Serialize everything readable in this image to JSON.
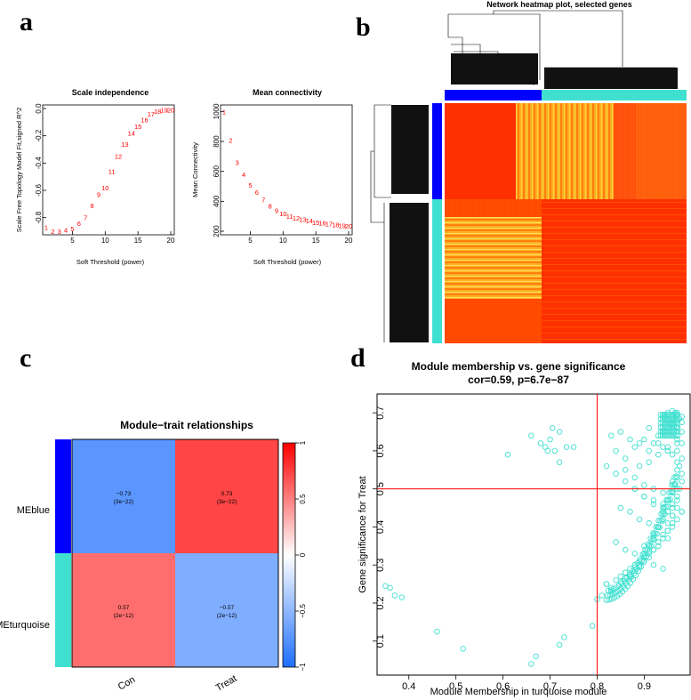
{
  "panels": {
    "a": "a",
    "b": "b",
    "c": "c",
    "d": "d"
  },
  "colors": {
    "blue": "#0000ff",
    "turquoise": "#40e0d0",
    "red": "#ff0000"
  },
  "chart_data": [
    {
      "id": "scale-independence",
      "type": "scatter",
      "title": "Scale independence",
      "xlabel": "Soft Threshold (power)",
      "ylabel": "Scale Free Topology Model Fit,signed R^2",
      "xlim": [
        1,
        20
      ],
      "ylim": [
        -0.9,
        0.0
      ],
      "xticks": [
        5,
        10,
        15,
        20
      ],
      "yticks": [
        0.0,
        -0.2,
        -0.4,
        -0.6,
        -0.8
      ],
      "ytick_labels": [
        "0.0",
        "-0.2",
        "-0.4",
        "-0.6",
        "-0.8"
      ],
      "x": [
        1,
        2,
        3,
        4,
        5,
        6,
        7,
        8,
        9,
        10,
        11,
        12,
        13,
        14,
        15,
        16,
        17,
        18,
        19,
        20
      ],
      "y": [
        -0.87,
        -0.9,
        -0.9,
        -0.89,
        -0.88,
        -0.84,
        -0.8,
        -0.71,
        -0.63,
        -0.58,
        -0.46,
        -0.35,
        -0.26,
        -0.18,
        -0.13,
        -0.08,
        -0.04,
        -0.02,
        -0.01,
        -0.01
      ],
      "labels": [
        "1",
        "2",
        "3",
        "4",
        "5",
        "6",
        "7",
        "8",
        "9",
        "10",
        "11",
        "12",
        "13",
        "14",
        "15",
        "16",
        "17",
        "18",
        "19",
        "20"
      ]
    },
    {
      "id": "mean-connectivity",
      "type": "scatter",
      "title": "Mean connectivity",
      "xlabel": "Soft Threshold (power)",
      "ylabel": "Mean Connectivity",
      "xlim": [
        1,
        20
      ],
      "ylim": [
        200,
        1020
      ],
      "xticks": [
        5,
        10,
        15,
        20
      ],
      "yticks": [
        200,
        400,
        600,
        800,
        1000
      ],
      "ytick_labels": [
        "200",
        "400",
        "600",
        "800",
        "1000"
      ],
      "x": [
        1,
        2,
        3,
        4,
        5,
        6,
        7,
        8,
        9,
        10,
        11,
        12,
        13,
        14,
        15,
        16,
        17,
        18,
        19,
        20
      ],
      "y": [
        1000,
        810,
        660,
        580,
        510,
        460,
        410,
        370,
        340,
        320,
        300,
        290,
        280,
        270,
        260,
        255,
        250,
        245,
        240,
        235
      ],
      "labels": [
        "1",
        "2",
        "3",
        "4",
        "5",
        "6",
        "7",
        "8",
        "9",
        "10",
        "11",
        "12",
        "13",
        "14",
        "15",
        "16",
        "17",
        "18",
        "19",
        "20"
      ]
    },
    {
      "id": "network-heatmap",
      "type": "heatmap",
      "title": "Network heatmap plot, selected genes",
      "modules": [
        {
          "name": "blue",
          "fraction": 0.4
        },
        {
          "name": "turquoise",
          "fraction": 0.6
        }
      ]
    },
    {
      "id": "module-trait",
      "type": "heatmap",
      "title": "Module−trait relationships",
      "columns": [
        "Con",
        "Treat"
      ],
      "rows": [
        "MEblue",
        "MEturquoise"
      ],
      "values": [
        [
          -0.73,
          0.73
        ],
        [
          0.57,
          -0.57
        ]
      ],
      "cell_text": [
        [
          "−0.73",
          "0.73"
        ],
        [
          "0.57",
          "−0.57"
        ]
      ],
      "cell_pvalues": [
        [
          "(3e−22)",
          "(3e−22)"
        ],
        [
          "(2e−12)",
          "(2e−12)"
        ]
      ],
      "legend_ticks": [
        "1",
        "0.5",
        "0",
        "−0.5",
        "−1"
      ],
      "legend_range": [
        -1,
        1
      ]
    },
    {
      "id": "membership-significance",
      "type": "scatter",
      "title": "Module membership vs. gene significance",
      "subtitle": "cor=0.59, p=6.7e−87",
      "xlabel": "Module Membership in turquoise module",
      "ylabel": "Gene significance for  Treat",
      "xlim": [
        0.34,
        0.99
      ],
      "ylim": [
        0.02,
        0.74
      ],
      "xticks": [
        0.4,
        0.5,
        0.6,
        0.7,
        0.8,
        0.9
      ],
      "xtick_labels": [
        "0.4",
        "0.5",
        "0.6",
        "0.7",
        "0.8",
        "0.9"
      ],
      "yticks": [
        0.1,
        0.2,
        0.3,
        0.4,
        0.5,
        0.6,
        0.7
      ],
      "ytick_labels": [
        "0.1",
        "0.2",
        "0.3",
        "0.4",
        "0.5",
        "0.6",
        "0.7"
      ],
      "hline": 0.5,
      "vline": 0.8,
      "x": [
        0.35,
        0.36,
        0.37,
        0.385,
        0.46,
        0.515,
        0.61,
        0.66,
        0.68,
        0.695,
        0.7,
        0.705,
        0.72,
        0.735,
        0.69,
        0.71,
        0.72,
        0.75,
        0.66,
        0.67,
        0.72,
        0.73,
        0.79,
        0.81,
        0.83,
        0.8,
        0.82,
        0.84,
        0.85,
        0.86,
        0.87,
        0.88,
        0.89,
        0.9,
        0.91,
        0.92,
        0.93,
        0.94,
        0.95,
        0.96,
        0.97,
        0.85,
        0.86,
        0.87,
        0.88,
        0.89,
        0.9,
        0.91,
        0.92,
        0.93,
        0.94,
        0.95,
        0.96,
        0.97,
        0.975,
        0.98,
        0.86,
        0.88,
        0.9,
        0.92,
        0.94,
        0.95,
        0.96,
        0.97,
        0.9,
        0.92,
        0.93,
        0.94,
        0.95,
        0.96,
        0.965,
        0.97,
        0.97,
        0.975,
        0.98,
        0.93,
        0.94,
        0.95,
        0.96,
        0.97,
        0.96,
        0.965,
        0.97,
        0.975,
        0.98,
        0.83,
        0.85,
        0.87,
        0.89,
        0.91,
        0.84,
        0.86,
        0.88,
        0.9,
        0.92,
        0.94,
        0.95,
        0.96,
        0.97,
        0.98,
        0.82,
        0.84,
        0.86,
        0.88,
        0.9,
        0.92,
        0.94,
        0.96,
        0.85,
        0.87,
        0.89,
        0.91,
        0.93,
        0.95,
        0.97,
        0.88,
        0.9,
        0.92,
        0.94,
        0.96,
        0.98,
        0.86,
        0.88,
        0.9,
        0.92,
        0.94,
        0.96,
        0.97,
        0.98,
        0.91,
        0.93,
        0.95,
        0.97,
        0.89,
        0.91,
        0.93,
        0.95,
        0.97,
        0.95,
        0.96,
        0.97,
        0.98,
        0.94,
        0.95,
        0.96,
        0.97,
        0.98,
        0.84,
        0.86,
        0.88,
        0.9,
        0.92,
        0.94,
        0.96,
        0.98,
        0.82,
        0.83,
        0.87,
        0.91,
        0.93,
        0.95,
        0.97
      ],
      "y": [
        0.245,
        0.24,
        0.22,
        0.215,
        0.125,
        0.08,
        0.59,
        0.64,
        0.62,
        0.6,
        0.63,
        0.66,
        0.65,
        0.61,
        0.61,
        0.6,
        0.57,
        0.61,
        0.04,
        0.06,
        0.09,
        0.11,
        0.14,
        0.22,
        0.23,
        0.21,
        0.25,
        0.26,
        0.27,
        0.28,
        0.29,
        0.3,
        0.31,
        0.33,
        0.35,
        0.37,
        0.4,
        0.42,
        0.44,
        0.46,
        0.48,
        0.255,
        0.265,
        0.275,
        0.285,
        0.295,
        0.31,
        0.32,
        0.34,
        0.36,
        0.38,
        0.41,
        0.43,
        0.47,
        0.5,
        0.52,
        0.28,
        0.3,
        0.32,
        0.34,
        0.37,
        0.39,
        0.41,
        0.45,
        0.35,
        0.38,
        0.4,
        0.44,
        0.47,
        0.49,
        0.51,
        0.53,
        0.55,
        0.56,
        0.54,
        0.64,
        0.65,
        0.66,
        0.67,
        0.68,
        0.69,
        0.7,
        0.695,
        0.685,
        0.675,
        0.64,
        0.65,
        0.63,
        0.62,
        0.66,
        0.6,
        0.58,
        0.61,
        0.63,
        0.62,
        0.61,
        0.6,
        0.59,
        0.6,
        0.62,
        0.56,
        0.54,
        0.52,
        0.5,
        0.48,
        0.46,
        0.45,
        0.43,
        0.45,
        0.44,
        0.42,
        0.41,
        0.4,
        0.39,
        0.42,
        0.5,
        0.48,
        0.47,
        0.46,
        0.45,
        0.44,
        0.55,
        0.53,
        0.51,
        0.5,
        0.49,
        0.52,
        0.57,
        0.58,
        0.6,
        0.62,
        0.61,
        0.63,
        0.56,
        0.57,
        0.59,
        0.6,
        0.62,
        0.68,
        0.67,
        0.66,
        0.65,
        0.69,
        0.7,
        0.705,
        0.7,
        0.69,
        0.36,
        0.34,
        0.33,
        0.32,
        0.3,
        0.29,
        0.4,
        0.44,
        0.25,
        0.24,
        0.27,
        0.33,
        0.35,
        0.37,
        0.5
      ]
    }
  ]
}
